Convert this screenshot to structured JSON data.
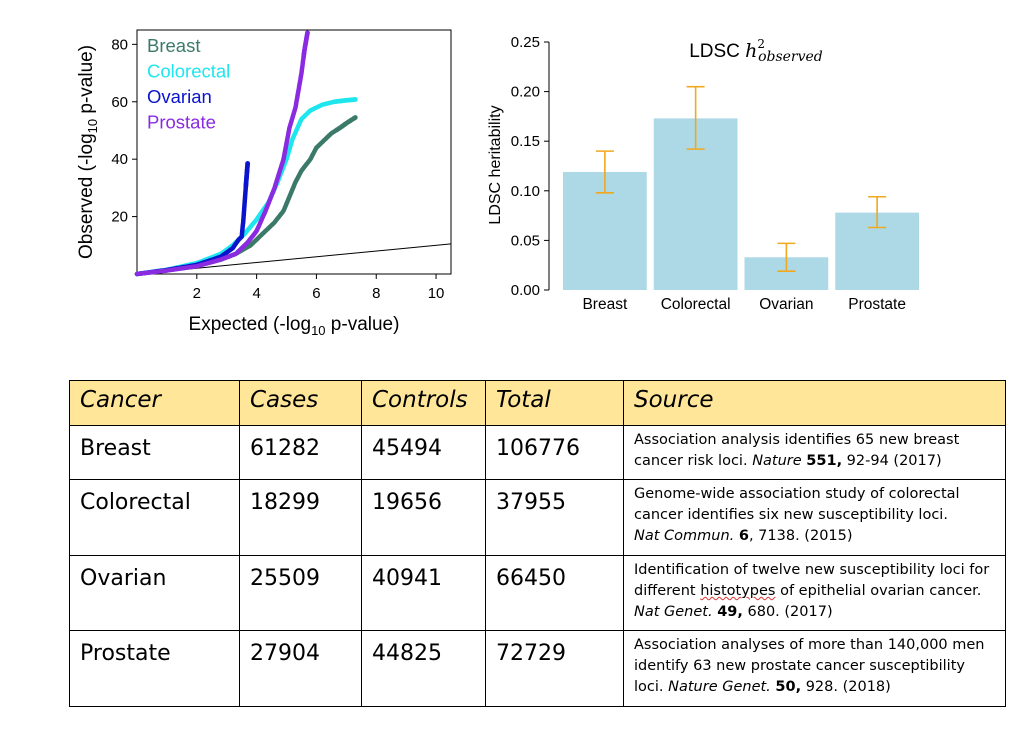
{
  "chart_data": [
    {
      "type": "scatter",
      "subtype": "qq-plot",
      "xlabel_main": "Expected (-log",
      "xlabel_sub": "10",
      "xlabel_tail": " p-value)",
      "ylabel_main": "Observed (-log",
      "ylabel_sub": "10",
      "ylabel_tail": " p-value)",
      "xlim": [
        0,
        10.5
      ],
      "ylim": [
        0,
        85
      ],
      "xticks": [
        2,
        4,
        6,
        8,
        10
      ],
      "yticks": [
        20,
        40,
        60,
        80
      ],
      "legend_position": "top-left",
      "reference_line": {
        "x": [
          0,
          10.5
        ],
        "y": [
          0,
          10.5
        ]
      },
      "series": [
        {
          "name": "Breast",
          "color": "#3b7a69",
          "points": [
            [
              0,
              0
            ],
            [
              1,
              1.3
            ],
            [
              2,
              3.0
            ],
            [
              2.8,
              5
            ],
            [
              3.3,
              7
            ],
            [
              3.8,
              10
            ],
            [
              4.2,
              14
            ],
            [
              4.6,
              18
            ],
            [
              4.9,
              22
            ],
            [
              5.1,
              27
            ],
            [
              5.3,
              32
            ],
            [
              5.5,
              36
            ],
            [
              5.8,
              40
            ],
            [
              6.0,
              44
            ],
            [
              6.3,
              47
            ],
            [
              6.5,
              49
            ],
            [
              6.8,
              51
            ],
            [
              7.0,
              52.5
            ],
            [
              7.3,
              54.5
            ]
          ]
        },
        {
          "name": "Colorectal",
          "color": "#1ee6ee",
          "points": [
            [
              0,
              0
            ],
            [
              1,
              1.5
            ],
            [
              2,
              3.8
            ],
            [
              2.8,
              7
            ],
            [
              3.2,
              10
            ],
            [
              3.6,
              14
            ],
            [
              4.0,
              19
            ],
            [
              4.4,
              25
            ],
            [
              4.7,
              32
            ],
            [
              5.0,
              40
            ],
            [
              5.2,
              47
            ],
            [
              5.5,
              54
            ],
            [
              5.8,
              57
            ],
            [
              6.2,
              59
            ],
            [
              6.6,
              60
            ],
            [
              7.0,
              60.5
            ],
            [
              7.3,
              60.8
            ]
          ]
        },
        {
          "name": "Ovarian",
          "color": "#0a14cc",
          "points": [
            [
              0,
              0
            ],
            [
              1,
              1.4
            ],
            [
              2,
              3.2
            ],
            [
              2.8,
              6
            ],
            [
              3.2,
              9
            ],
            [
              3.4,
              12
            ],
            [
              3.5,
              13
            ],
            [
              3.55,
              18
            ],
            [
              3.6,
              25
            ],
            [
              3.65,
              32
            ],
            [
              3.7,
              38.5
            ]
          ]
        },
        {
          "name": "Prostate",
          "color": "#8a2be2",
          "points": [
            [
              0,
              0
            ],
            [
              1,
              1.2
            ],
            [
              2,
              2.7
            ],
            [
              2.8,
              5
            ],
            [
              3.3,
              7
            ],
            [
              3.7,
              11
            ],
            [
              4.0,
              15
            ],
            [
              4.3,
              22
            ],
            [
              4.6,
              30
            ],
            [
              4.9,
              40
            ],
            [
              5.1,
              51
            ],
            [
              5.3,
              58
            ],
            [
              5.4,
              64
            ],
            [
              5.5,
              70
            ],
            [
              5.6,
              78
            ],
            [
              5.7,
              84
            ]
          ]
        }
      ]
    },
    {
      "type": "bar",
      "title_prefix": "LDSC ",
      "title_math": "h",
      "title_sup": "2",
      "title_sub": "observed",
      "ylabel": "LDSC heritability",
      "categories": [
        "Breast",
        "Colorectal",
        "Ovarian",
        "Prostate"
      ],
      "values": [
        0.119,
        0.173,
        0.033,
        0.078
      ],
      "error_low": [
        0.098,
        0.142,
        0.019,
        0.063
      ],
      "error_high": [
        0.14,
        0.205,
        0.047,
        0.094
      ],
      "ylim": [
        0,
        0.25
      ],
      "yticks": [
        "0.00",
        "0.05",
        "0.10",
        "0.15",
        "0.20",
        "0.25"
      ],
      "bar_color": "#add8e6",
      "error_color": "#f0a81e"
    }
  ],
  "table": {
    "header_bg": "#ffe699",
    "headers": [
      "Cancer",
      "Cases",
      "Controls",
      "Total",
      "Source"
    ],
    "rows": [
      {
        "cancer": "Breast",
        "cases": "61282",
        "controls": "45494",
        "total": "106776",
        "src_l1": "Association analysis identifies 65 new breast",
        "src_l2_plain": "cancer risk loci. ",
        "src_journal": "Nature",
        "src_vol": "551,",
        "src_tail": " 92-94 (2017)"
      },
      {
        "cancer": "Colorectal",
        "cases": "18299",
        "controls": "19656",
        "total": "37955",
        "src_l1": "Genome-wide association study of colorectal",
        "src_l2": "cancer identifies six new susceptibility loci.",
        "src_journal": "Nat Commun.",
        "src_vol": "6",
        "src_tail": ", 7138. (2015)"
      },
      {
        "cancer": "Ovarian",
        "cases": "25509",
        "controls": "40941",
        "total": "66450",
        "src_l1": "Identification of twelve new susceptibility loci for",
        "src_l2_a": "different ",
        "src_l2_word": "histotypes",
        "src_l2_b": " of epithelial ovarian cancer.",
        "src_journal": "Nat Genet.",
        "src_vol": "49,",
        "src_tail": " 680. (2017)"
      },
      {
        "cancer": "Prostate",
        "cases": "27904",
        "controls": "44825",
        "total": "72729",
        "src_l1": "Association analyses of more than 140,000 men",
        "src_l2": "identify 63 new prostate cancer susceptibility",
        "src_l3_plain": "loci. ",
        "src_journal": "Nature Genet.",
        "src_vol": "50,",
        "src_tail": " 928. (2018)"
      }
    ]
  }
}
